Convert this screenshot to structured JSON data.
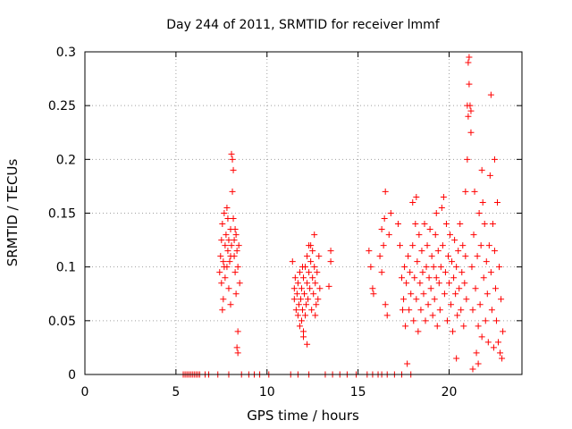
{
  "chart_data": {
    "type": "scatter",
    "title": "Day 244 of 2011, SRMTID for receiver lmmf",
    "xlabel": "GPS time / hours",
    "ylabel": "SRMTID / TECUs",
    "xlim": [
      0,
      24
    ],
    "ylim": [
      0,
      0.3
    ],
    "xticks": [
      0,
      5,
      10,
      15,
      20
    ],
    "xtick_labels": [
      "0",
      "5",
      "10",
      "15",
      "20"
    ],
    "yticks": [
      0,
      0.05,
      0.1,
      0.15,
      0.2,
      0.25,
      0.3
    ],
    "ytick_labels": [
      "0",
      "0.05",
      "0.1",
      "0.15",
      "0.2",
      "0.25",
      "0.3"
    ],
    "grid": true,
    "legend": "none",
    "marker": "+",
    "series": [
      {
        "name": "SRMTID",
        "color": "#ff0000",
        "points": [
          [
            5.4,
            0
          ],
          [
            5.5,
            0
          ],
          [
            5.6,
            0
          ],
          [
            5.7,
            0
          ],
          [
            5.8,
            0
          ],
          [
            5.9,
            0
          ],
          [
            6.0,
            0
          ],
          [
            6.1,
            0
          ],
          [
            6.2,
            0
          ],
          [
            6.3,
            0
          ],
          [
            6.6,
            0
          ],
          [
            6.8,
            0
          ],
          [
            7.3,
            0
          ],
          [
            7.9,
            0
          ],
          [
            8.6,
            0
          ],
          [
            9.0,
            0
          ],
          [
            9.3,
            0
          ],
          [
            9.6,
            0
          ],
          [
            10.1,
            0
          ],
          [
            11.3,
            0
          ],
          [
            11.7,
            0
          ],
          [
            12.3,
            0
          ],
          [
            13.2,
            0
          ],
          [
            13.6,
            0
          ],
          [
            14.0,
            0
          ],
          [
            14.4,
            0
          ],
          [
            14.9,
            0
          ],
          [
            15.5,
            0
          ],
          [
            15.8,
            0
          ],
          [
            16.1,
            0
          ],
          [
            16.3,
            0
          ],
          [
            16.6,
            0
          ],
          [
            17.0,
            0
          ],
          [
            17.4,
            0
          ],
          [
            17.9,
            0
          ],
          [
            7.4,
            0.095
          ],
          [
            7.45,
            0.11
          ],
          [
            7.5,
            0.125
          ],
          [
            7.5,
            0.085
          ],
          [
            7.55,
            0.14
          ],
          [
            7.6,
            0.07
          ],
          [
            7.6,
            0.105
          ],
          [
            7.65,
            0.15
          ],
          [
            7.7,
            0.12
          ],
          [
            7.7,
            0.09
          ],
          [
            7.75,
            0.13
          ],
          [
            7.8,
            0.1
          ],
          [
            7.8,
            0.155
          ],
          [
            7.85,
            0.115
          ],
          [
            7.9,
            0.08
          ],
          [
            7.9,
            0.125
          ],
          [
            7.95,
            0.105
          ],
          [
            8.0,
            0.135
          ],
          [
            8.0,
            0.065
          ],
          [
            8.05,
            0.12
          ],
          [
            8.1,
            0.2
          ],
          [
            8.1,
            0.17
          ],
          [
            8.15,
            0.19
          ],
          [
            8.15,
            0.145
          ],
          [
            8.2,
            0.11
          ],
          [
            8.2,
            0.125
          ],
          [
            8.25,
            0.095
          ],
          [
            8.3,
            0.13
          ],
          [
            8.3,
            0.075
          ],
          [
            8.35,
            0.115
          ],
          [
            8.4,
            0.1
          ],
          [
            8.4,
            0.04
          ],
          [
            8.45,
            0.12
          ],
          [
            8.5,
            0.085
          ],
          [
            8.35,
            0.025
          ],
          [
            8.4,
            0.02
          ],
          [
            7.55,
            0.06
          ],
          [
            8.05,
            0.205
          ],
          [
            7.65,
            0.1
          ],
          [
            8.25,
            0.135
          ],
          [
            7.85,
            0.145
          ],
          [
            8.0,
            0.11
          ],
          [
            11.4,
            0.105
          ],
          [
            11.5,
            0.08
          ],
          [
            11.5,
            0.07
          ],
          [
            11.55,
            0.09
          ],
          [
            11.6,
            0.06
          ],
          [
            11.65,
            0.075
          ],
          [
            11.7,
            0.085
          ],
          [
            11.7,
            0.055
          ],
          [
            11.75,
            0.065
          ],
          [
            11.8,
            0.045
          ],
          [
            11.8,
            0.095
          ],
          [
            11.85,
            0.07
          ],
          [
            11.9,
            0.05
          ],
          [
            11.9,
            0.08
          ],
          [
            11.95,
            0.06
          ],
          [
            12.0,
            0.04
          ],
          [
            12.0,
            0.09
          ],
          [
            12.05,
            0.075
          ],
          [
            12.1,
            0.055
          ],
          [
            12.1,
            0.1
          ],
          [
            12.15,
            0.065
          ],
          [
            12.2,
            0.11
          ],
          [
            12.2,
            0.085
          ],
          [
            12.25,
            0.07
          ],
          [
            12.3,
            0.12
          ],
          [
            12.3,
            0.095
          ],
          [
            12.35,
            0.08
          ],
          [
            12.4,
            0.105
          ],
          [
            12.45,
            0.06
          ],
          [
            12.5,
            0.09
          ],
          [
            12.5,
            0.115
          ],
          [
            12.55,
            0.075
          ],
          [
            12.6,
            0.1
          ],
          [
            12.6,
            0.13
          ],
          [
            12.65,
            0.085
          ],
          [
            12.7,
            0.065
          ],
          [
            12.75,
            0.095
          ],
          [
            12.8,
            0.07
          ],
          [
            12.85,
            0.11
          ],
          [
            12.9,
            0.08
          ],
          [
            12.2,
            0.028
          ],
          [
            13.4,
            0.082
          ],
          [
            13.5,
            0.115
          ],
          [
            13.5,
            0.105
          ],
          [
            12.4,
            0.12
          ],
          [
            11.95,
            0.1
          ],
          [
            12.0,
            0.035
          ],
          [
            12.65,
            0.055
          ],
          [
            15.6,
            0.115
          ],
          [
            15.7,
            0.1
          ],
          [
            15.8,
            0.08
          ],
          [
            15.85,
            0.075
          ],
          [
            16.2,
            0.11
          ],
          [
            16.3,
            0.135
          ],
          [
            16.3,
            0.095
          ],
          [
            16.4,
            0.12
          ],
          [
            16.45,
            0.145
          ],
          [
            16.5,
            0.17
          ],
          [
            16.5,
            0.065
          ],
          [
            16.6,
            0.055
          ],
          [
            16.7,
            0.13
          ],
          [
            16.8,
            0.15
          ],
          [
            17.2,
            0.14
          ],
          [
            17.3,
            0.12
          ],
          [
            17.4,
            0.09
          ],
          [
            17.45,
            0.06
          ],
          [
            17.5,
            0.07
          ],
          [
            17.55,
            0.1
          ],
          [
            17.6,
            0.045
          ],
          [
            17.65,
            0.085
          ],
          [
            17.7,
            0.01
          ],
          [
            17.75,
            0.11
          ],
          [
            17.8,
            0.06
          ],
          [
            17.85,
            0.095
          ],
          [
            17.9,
            0.075
          ],
          [
            18.0,
            0.16
          ],
          [
            18.0,
            0.12
          ],
          [
            18.05,
            0.05
          ],
          [
            18.1,
            0.09
          ],
          [
            18.15,
            0.14
          ],
          [
            18.2,
            0.07
          ],
          [
            18.25,
            0.105
          ],
          [
            18.3,
            0.04
          ],
          [
            18.35,
            0.13
          ],
          [
            18.4,
            0.085
          ],
          [
            18.45,
            0.06
          ],
          [
            18.5,
            0.115
          ],
          [
            18.55,
            0.095
          ],
          [
            18.6,
            0.075
          ],
          [
            18.65,
            0.14
          ],
          [
            18.7,
            0.05
          ],
          [
            18.75,
            0.1
          ],
          [
            18.8,
            0.12
          ],
          [
            18.85,
            0.065
          ],
          [
            18.9,
            0.09
          ],
          [
            18.95,
            0.135
          ],
          [
            19.0,
            0.08
          ],
          [
            19.05,
            0.11
          ],
          [
            19.1,
            0.055
          ],
          [
            19.15,
            0.1
          ],
          [
            19.2,
            0.07
          ],
          [
            19.25,
            0.13
          ],
          [
            19.3,
            0.09
          ],
          [
            19.35,
            0.045
          ],
          [
            19.4,
            0.115
          ],
          [
            19.45,
            0.085
          ],
          [
            19.5,
            0.06
          ],
          [
            19.55,
            0.1
          ],
          [
            19.6,
            0.155
          ],
          [
            19.65,
            0.12
          ],
          [
            19.7,
            0.165
          ],
          [
            19.75,
            0.075
          ],
          [
            19.8,
            0.095
          ],
          [
            19.85,
            0.14
          ],
          [
            19.9,
            0.05
          ],
          [
            19.95,
            0.11
          ],
          [
            20.0,
            0.085
          ],
          [
            20.05,
            0.13
          ],
          [
            20.1,
            0.065
          ],
          [
            20.15,
            0.105
          ],
          [
            20.2,
            0.04
          ],
          [
            20.25,
            0.09
          ],
          [
            20.3,
            0.125
          ],
          [
            20.35,
            0.075
          ],
          [
            20.4,
            0.1
          ],
          [
            20.45,
            0.055
          ],
          [
            20.5,
            0.115
          ],
          [
            20.55,
            0.08
          ],
          [
            20.6,
            0.14
          ],
          [
            20.65,
            0.06
          ],
          [
            20.7,
            0.095
          ],
          [
            20.75,
            0.12
          ],
          [
            20.8,
            0.045
          ],
          [
            20.85,
            0.085
          ],
          [
            20.9,
            0.11
          ],
          [
            20.95,
            0.07
          ],
          [
            21.0,
            0.25
          ],
          [
            21.0,
            0.2
          ],
          [
            21.05,
            0.24
          ],
          [
            21.05,
            0.29
          ],
          [
            21.1,
            0.295
          ],
          [
            21.1,
            0.27
          ],
          [
            21.15,
            0.25
          ],
          [
            21.2,
            0.225
          ],
          [
            21.2,
            0.245
          ],
          [
            21.25,
            0.1
          ],
          [
            21.3,
            0.06
          ],
          [
            21.35,
            0.13
          ],
          [
            21.4,
            0.17
          ],
          [
            21.45,
            0.08
          ],
          [
            21.5,
            0.02
          ],
          [
            21.55,
            0.11
          ],
          [
            21.6,
            0.045
          ],
          [
            21.65,
            0.15
          ],
          [
            21.7,
            0.065
          ],
          [
            21.75,
            0.12
          ],
          [
            21.8,
            0.035
          ],
          [
            21.85,
            0.16
          ],
          [
            21.9,
            0.09
          ],
          [
            21.95,
            0.14
          ],
          [
            22.0,
            0.05
          ],
          [
            22.05,
            0.105
          ],
          [
            22.1,
            0.075
          ],
          [
            22.15,
            0.03
          ],
          [
            22.2,
            0.12
          ],
          [
            22.25,
            0.185
          ],
          [
            22.3,
            0.26
          ],
          [
            22.3,
            0.095
          ],
          [
            22.35,
            0.06
          ],
          [
            22.4,
            0.14
          ],
          [
            22.45,
            0.025
          ],
          [
            22.5,
            0.115
          ],
          [
            22.55,
            0.08
          ],
          [
            22.6,
            0.05
          ],
          [
            22.65,
            0.16
          ],
          [
            22.7,
            0.03
          ],
          [
            22.75,
            0.1
          ],
          [
            22.8,
            0.02
          ],
          [
            22.85,
            0.07
          ],
          [
            22.9,
            0.015
          ],
          [
            22.95,
            0.04
          ],
          [
            21.3,
            0.005
          ],
          [
            21.6,
            0.01
          ],
          [
            20.4,
            0.015
          ],
          [
            19.3,
            0.15
          ],
          [
            18.2,
            0.165
          ],
          [
            20.9,
            0.17
          ],
          [
            22.5,
            0.2
          ],
          [
            21.8,
            0.19
          ]
        ]
      }
    ]
  }
}
